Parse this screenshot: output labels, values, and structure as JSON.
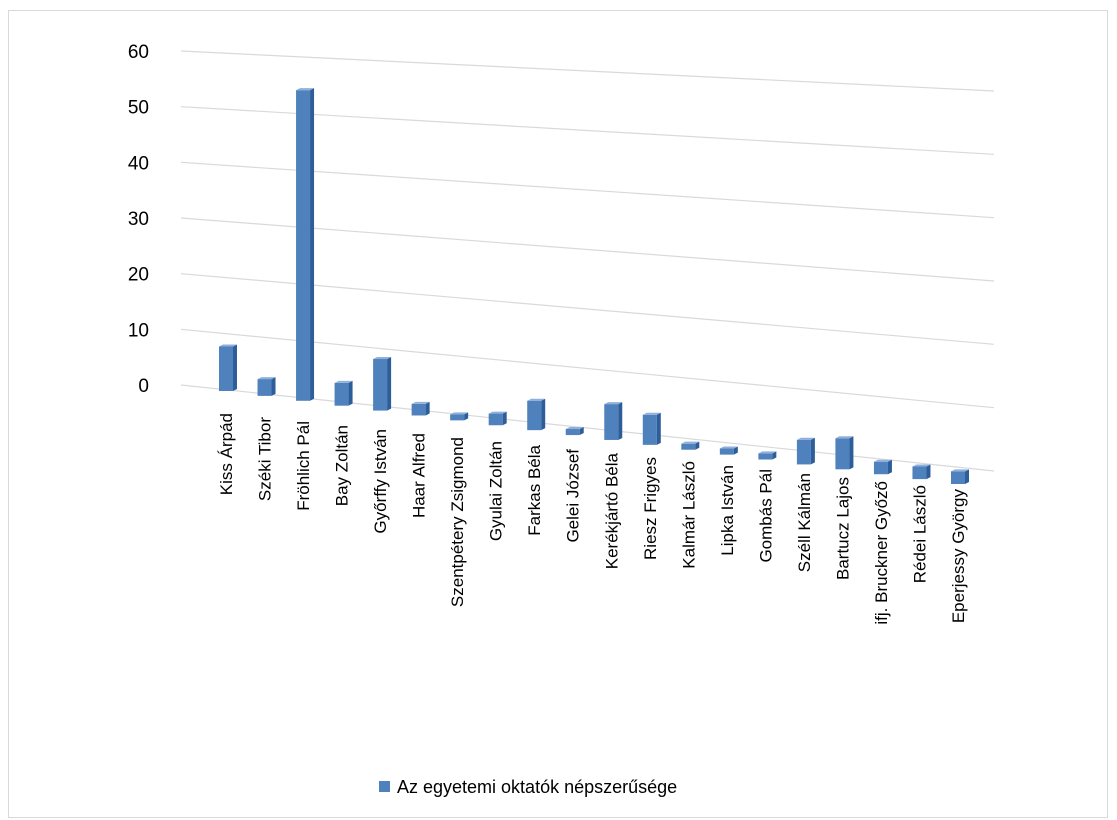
{
  "chart_data": {
    "type": "bar",
    "style": "3d-column-perspective",
    "categories": [
      "Kiss Árpád",
      "Széki Tibor",
      "Fröhlich Pál",
      "Bay Zoltán",
      "Győrffy István",
      "Haar Alfred",
      "Szentpétery Zsigmond",
      "Gyulai Zoltán",
      "Farkas Béla",
      "Gelei József",
      "Kerékjártó Béla",
      "Riesz Frigyes",
      "Kalmár László",
      "Lipka István",
      "Gombás Pál",
      "Széll Kálmán",
      "Bartucz Lajos",
      "ifj. Bruckner Győző",
      "Rédei László",
      "Eperjessy György"
    ],
    "series": [
      {
        "name": "Az egyetemi oktatók népszerűsége",
        "values": [
          8,
          3,
          55,
          4,
          9,
          2,
          1,
          2,
          5,
          1,
          6,
          5,
          1,
          1,
          1,
          4,
          5,
          2,
          2,
          2
        ]
      }
    ],
    "y_ticks": [
      "0",
      "10",
      "20",
      "30",
      "40",
      "50",
      "60"
    ],
    "ylim": [
      0,
      60
    ],
    "grid": true,
    "legend_position": "bottom",
    "colors": {
      "bar": "#4f81bd",
      "bar_side": "#2e5e99",
      "bar_top": "#8fb0dd",
      "grid": "#d9d9d9",
      "legend_swatch": "#4f81bd"
    }
  }
}
